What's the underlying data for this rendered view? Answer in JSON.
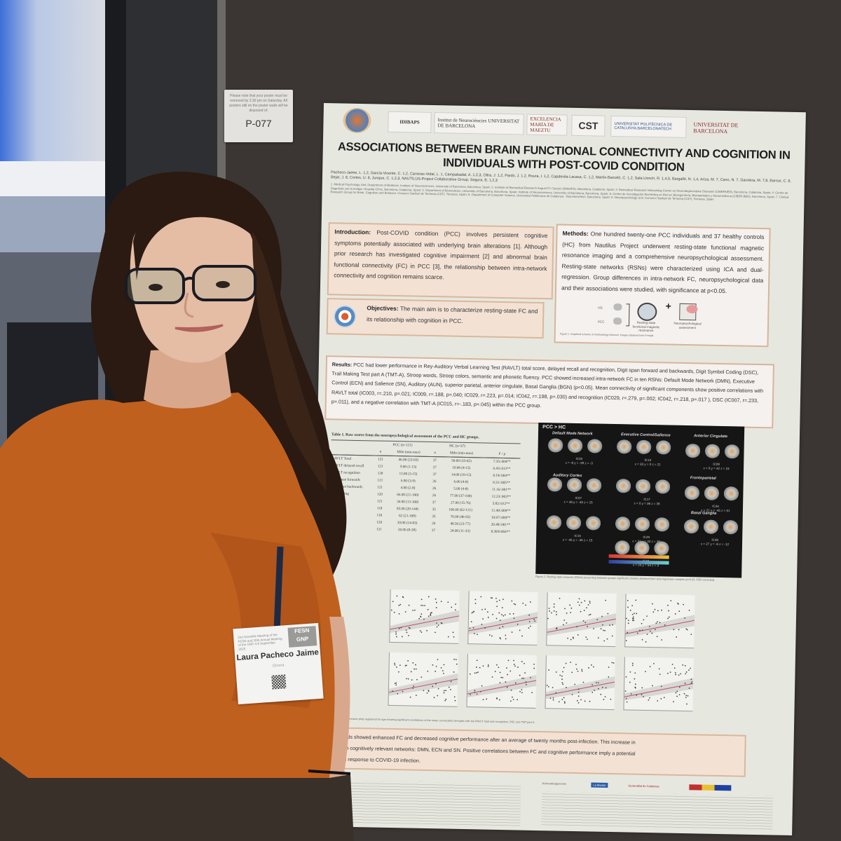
{
  "sign": {
    "note": "Please note that your poster must be removed by 2.30 pm on Saturday. All posters still on the poster walls will be disposed of.",
    "code": "P-077"
  },
  "poster": {
    "logos": [
      "IDIBAPS",
      "Institut de Neurociències UNIVERSITAT DE BARCELONA",
      "EXCELENCIA MARÍA DE MAEZTU",
      "CST",
      "UNIVERSITAT POLITÈCNICA DE CATALUNYA BARCELONATECH",
      "UNIVERSITAT DE BARCELONA"
    ],
    "title": "ASSOCIATIONS BETWEEN BRAIN FUNCTIONAL CONNECTIVITY AND COGNITION IN INDIVIDUALS WITH POST-COVID CONDITION",
    "authors": "Pacheco-Jaime, L. 1,2, García-Vicente, C. 1,2, Carreras-Vidal, L. 1, Campabadal, A. 1,2,3, Oltra, J. 1,2, Pardo, J. 1,2, Roura, I. 1,2, Capdevila-Lacasa, C. 1,2, Martín-Barceló, C. 1,2, Sala-Llonch, R. 1,4,5, Bargalló, N. 1,4, Ariza, M. 7, Cano, N. 7, Garolera, M. 7,8, Barrue, C. 8, Bejar, J. 8, Cortes, U. 8, Junque, C. 1,2,3, NAUTILUS-Project Collaborative Group, Segura, B. 1,2,3",
    "affiliations": "1. Medical Psychology Unit, Department of Medicine, Institute of Neurosciences, University of Barcelona, Barcelona, Spain; 2. Institute of Biomedical Research August Pi i Sunyer (IDIBAPS), Barcelona, Catalonia, Spain; 3. Biomedical Research Networking Center on Neurodegenerative Diseases (CIBERNED), Barcelona, Catalonia, Spain; 4. Centre de Diagnòstic per la Imatge, Hospital Clínic, Barcelona, Catalonia, Spain; 5. Department of Biomedicine, University of Barcelona, Barcelona, Spain; Institute of Neurosciences, University of Barcelona, Barcelona, Spain; 6. Centro de Investigación Biomédica en Red en Bioingeniería, Biomateriales y Nanomedicina (CIBER-BBN), Barcelona, Spain; 7. Clinical Research Group for Brain, Cognition and Behavior, Consorci Sanitari de Terrassa (CST), Terrassa, Spain; 8. Department of Computer Science, Universitat Politècnica de Catalunya - BarcelonaTech, Barcelona, Spain; 9. Neuropsychology Unit, Consorci Sanitari de Terrassa (CST), Terrassa, Spain",
    "introduction": {
      "label": "Introduction:",
      "text": "Post-COVID condition (PCC) involves persistent cognitive symptoms potentially associated with underlying brain alterations [1]. Although prior research has investigated cognitive impairment [2] and abnormal brain functional connectivity (FC) in PCC [3], the relationship between intra-network connectivity and cognition remains scarce."
    },
    "objectives": {
      "label": "Objectives:",
      "text": "The main aim is to characterize resting-state FC and its relationship with cognition in PCC."
    },
    "methods": {
      "label": "Methods:",
      "text": "One hundred twenty-one PCC individuals and 37 healthy controls (HC) from Nautilus Project underwent resting-state functional magnetic resonance imaging and a comprehensive neuropsychological assessment. Resting-state networks (RSNs) were characterized using ICA and dual-regression. Group differences in intra-network FC, neuropsychological data and their associations were studied, with significance at p<0.05.",
      "diagram": {
        "group_hc": "HS",
        "group_pcc": "PCC",
        "step1": "Resting-state functional magnetic resonance",
        "step2": "Neuropsychological assessment"
      },
      "caption": "Figure 1. Graphical scheme of methodology followed. Images obtained from Freepik"
    },
    "results": {
      "label": "Results:",
      "text": "PCC had lower performance in Rey-Auditory Verbal Learning Test (RAVLT) total score, delayed recall and recognition, Digit span forward and backwards, Digit Symbol Coding (DSC), Trail Making Test part A (TMT-A), Stroop words, Stroop colors, semantic and phonetic fluency. PCC showed increased intra-network FC in ten RSNs: Default Mode Network (DMN), Executive Control (ECN) and Salience (SN), Auditory (AUN), superior parietal, anterior cingulate, Basal Ganglia (BGN) (p<0.05). Mean connectivity of significant components show positive correlations with RAVLT total (IC003, r=.210, p=.021; IC009, r=.188, p=.040; IC029, r=.223, p=.014; IC042, r=.198, p=.030) and recognition (IC029, r=.279, p=.002; IC042, r=.218, p=.017 ), DSC (IC007, r=.233, p=.011), and a negative correlation with TMT-A (IC015, r=-.183, p=.045) within the PCC group."
    },
    "table": {
      "caption": "Table 1. Raw scores from the neuropsychological assessment of the PCC and HC groups.",
      "group_pcc": "PCC (n=121)",
      "group_hc": "HC (n=37)",
      "columns": [
        "",
        "n",
        "Mdn (min-max)",
        "n",
        "Mdn (min-max)",
        "F / p"
      ],
      "rows": [
        [
          "RAVLT Total",
          "121",
          "46.00 (23-65)",
          "37",
          "50.00 (35-65)",
          "7.35/.004**"
        ],
        [
          "RAVLT delayed recall",
          "121",
          "9.00 (1-15)",
          "37",
          "10.00 (4-15)",
          "6.43/.013**"
        ],
        [
          "RAVLT recognition",
          "120",
          "13.00 (3-15)",
          "37",
          "14.00 (10-15)",
          "8.19/.004**"
        ],
        [
          "Digit span forwards",
          "121",
          "6.00 (3-9)",
          "26",
          "6.00 (4-8)",
          "8.31/.005**"
        ],
        [
          "Digit span backwards",
          "121",
          "4.00 (2-8)",
          "26",
          "5.00 (4-8)",
          "11.16/.001**"
        ],
        [
          "DSC coding",
          "120",
          "66.00 (21-100)",
          "26",
          "77.00 (37-100)",
          "12.23/.003**"
        ],
        [
          "TMTA",
          "121",
          "34.00 (13-180)",
          "37",
          "27.00 (15-76)",
          "5.82/.012**"
        ],
        [
          "Stroop W",
          "118",
          "95.00 (20-144)",
          "35",
          "106.00 (62-131)",
          "11.49/.009**"
        ],
        [
          "",
          "118",
          "62 (21-108)",
          "35",
          "70.00 (46-92)",
          "10.97/.009**"
        ],
        [
          "fluency",
          "120",
          "39.00 (14-83)",
          "26",
          "48.50 (23-77)",
          "20.49/.001**"
        ],
        [
          "fluency",
          "121",
          "20.00 (8-38)",
          "37",
          "24.00 (11-33)",
          "8.38/0.004**"
        ]
      ]
    },
    "brain_figure": {
      "header": "PCC > HC",
      "networks": [
        "Default Mode Network",
        "Executive Control/Salience",
        "Anterior Cingulate",
        "Auditory Cortex",
        "Frontoparietal",
        "Basal Ganglia"
      ],
      "components": [
        {
          "id": "IC03",
          "coords": "x = -6 y = -39 z = -3"
        },
        {
          "id": "IC13",
          "coords": "x = 33 y = 0 z = 21"
        },
        {
          "id": "IC09",
          "coords": "x = 9 y = 42 z = 24"
        },
        {
          "id": "IC07",
          "coords": "x = 48 y = -45 z = 15"
        },
        {
          "id": "IC17",
          "coords": "x = 0 y = 36 z = 36"
        },
        {
          "id": "IC44",
          "coords": "x = 21 y = -45 z = 51"
        },
        {
          "id": "IC15",
          "coords": "x = -45 y = -45 z = 15"
        },
        {
          "id": "IC29",
          "coords": "x = 21 y = 33 z = 36"
        },
        {
          "id": "IC48",
          "coords": "x = 27 y = -6 z = -12"
        },
        {
          "id": "IC42",
          "coords": "x = 24 y = 54 z = 3"
        }
      ],
      "caption": "Figure 2. Resting state networks (RSNs) presenting between-groups significant clusters obtained from dual regression analysis (p<0.05, FDR corrected)."
    },
    "scatter_caption": "Figure 3. Partial regression plots registered for age showing significant correlations of the mean connectivity strengths with the RAVLT total and recognition, DSC and TMT part A.",
    "conclusions": {
      "text_line1": "ons: PCC individuals showed enhanced FC and decreased cognitive performance after an average of twenty months post-infection. This increase in",
      "text_line2": "ity was observed in cognitively relevant networks: DMN, ECN and SN. Positive correlations between FC and cognitive performance imply a potential",
      "text_line3": "tory mechanism in response to COVID-19 infection."
    },
    "footer": {
      "acknowledgements": "Acknowledgements",
      "sponsor1": "La Marató",
      "sponsor2": "Generalitat de Catalunya"
    }
  },
  "badge": {
    "event": "2nd Scientific Meeting of the FESN and 30th Annual Meeting of the GNP 4-6 September 2025",
    "logo": "FESN GNP",
    "name": "Laura Pacheco Jaime",
    "city": "Girona"
  },
  "colors": {
    "board": "#3a3532",
    "shirt": "#c0601f",
    "hair": "#2a1a12",
    "box_fill": "#f3e2d4",
    "box_border": "#d9b79c"
  }
}
